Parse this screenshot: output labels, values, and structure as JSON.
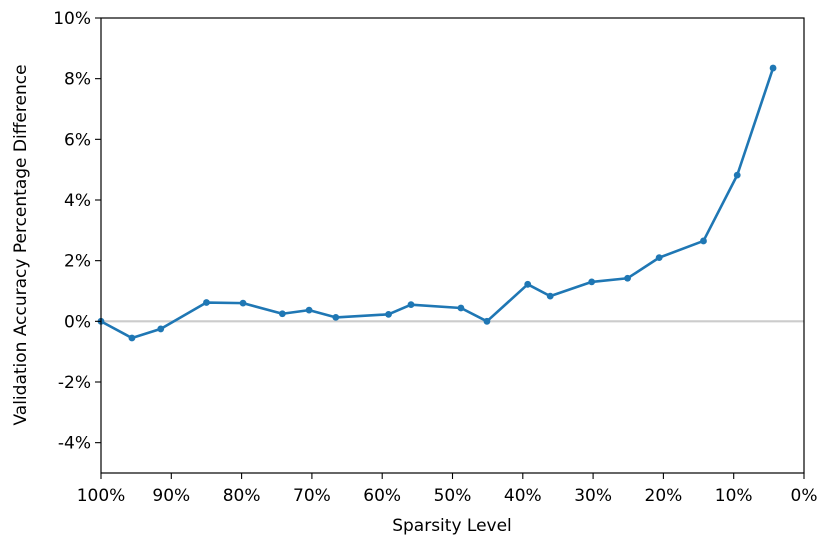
{
  "chart_data": {
    "type": "line",
    "xlabel": "Sparsity Level",
    "ylabel": "Validation Accuracy Percentage Difference",
    "xlim": [
      100,
      0
    ],
    "ylim": [
      -5,
      10
    ],
    "x_ticks": [
      100,
      90,
      80,
      70,
      60,
      50,
      40,
      30,
      20,
      10,
      0
    ],
    "x_tick_labels": [
      "100%",
      "90%",
      "80%",
      "70%",
      "60%",
      "50%",
      "40%",
      "30%",
      "20%",
      "10%",
      "0%"
    ],
    "y_ticks": [
      10,
      8,
      6,
      4,
      2,
      0,
      -2,
      -4
    ],
    "y_tick_labels": [
      "10%",
      "8%",
      "6%",
      "4%",
      "2%",
      "0%",
      "-2%",
      "-4%"
    ],
    "reference_line": {
      "y": 0,
      "color": "#cccccc"
    },
    "grid": false,
    "series": [
      {
        "color": "#1f77b4",
        "x": [
          100,
          95.6,
          91.5,
          85,
          79.8,
          74.2,
          70.4,
          66.6,
          59.1,
          55.9,
          48.8,
          45.1,
          39.3,
          36.1,
          30.2,
          25.1,
          20.6,
          14.3,
          9.5,
          4.4
        ],
        "y": [
          0.0,
          -0.55,
          -0.25,
          0.62,
          0.6,
          0.25,
          0.37,
          0.13,
          0.23,
          0.55,
          0.44,
          0.0,
          1.22,
          0.83,
          1.3,
          1.42,
          2.1,
          2.65,
          4.82,
          8.35
        ]
      }
    ]
  }
}
